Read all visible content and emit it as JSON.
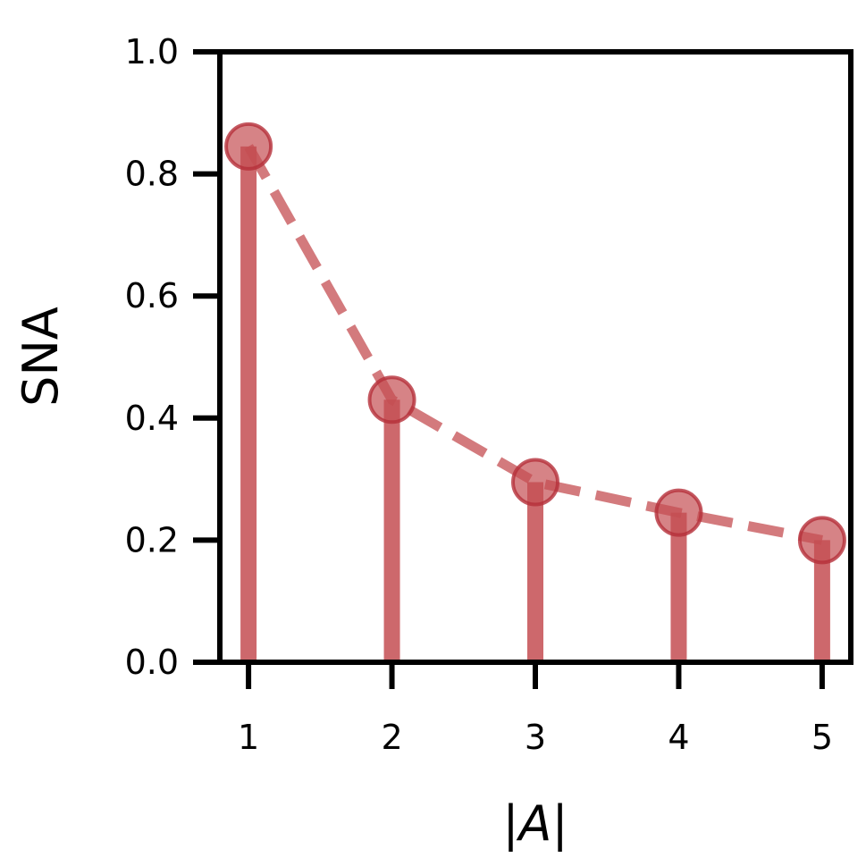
{
  "chart_data": {
    "type": "stem",
    "x": [
      1,
      2,
      3,
      4,
      5
    ],
    "y": [
      0.845,
      0.43,
      0.295,
      0.245,
      0.2
    ],
    "xlabel_parts": [
      "|",
      "A",
      "|"
    ],
    "ylabel": "SNA",
    "ylim": [
      0.0,
      1.0
    ],
    "xlim": [
      0.8,
      5.2
    ],
    "yticks": [
      "0.0",
      "0.2",
      "0.4",
      "0.6",
      "0.8",
      "1.0"
    ],
    "xticks": [
      "1",
      "2",
      "3",
      "4",
      "5"
    ],
    "grid": false,
    "legend": "none",
    "line_style": "dashed",
    "color": "#c44e52"
  }
}
